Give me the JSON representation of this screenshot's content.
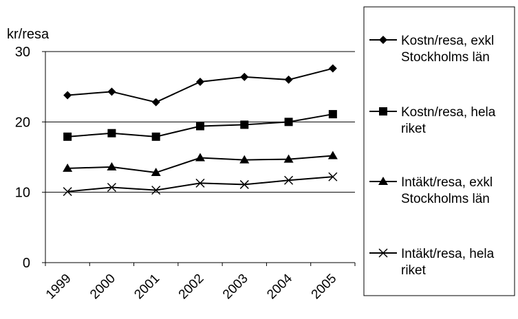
{
  "chart_data": {
    "type": "line",
    "ylabel": "kr/resa",
    "xlabel": "",
    "title": "",
    "ylim": [
      0,
      30
    ],
    "yticks": [
      0,
      10,
      20,
      30
    ],
    "grid": "horizontal",
    "legend_position": "right",
    "categories": [
      "1999",
      "2000",
      "2001",
      "2002",
      "2003",
      "2004",
      "2005"
    ],
    "series": [
      {
        "name": "Kostn/resa, exkl Stockholms län",
        "legend_lines": [
          "Kostn/resa, exkl",
          "Stockholms län"
        ],
        "marker": "diamond",
        "values": [
          23.8,
          24.3,
          22.8,
          25.7,
          26.4,
          26.0,
          27.6
        ]
      },
      {
        "name": "Kostn/resa, hela riket",
        "legend_lines": [
          "Kostn/resa, hela",
          "riket"
        ],
        "marker": "square",
        "values": [
          17.9,
          18.4,
          17.9,
          19.4,
          19.6,
          20.0,
          21.1
        ]
      },
      {
        "name": "Intäkt/resa, exkl Stockholms län",
        "legend_lines": [
          "Intäkt/resa, exkl",
          "Stockholms län"
        ],
        "marker": "triangle",
        "values": [
          13.4,
          13.6,
          12.8,
          14.9,
          14.6,
          14.7,
          15.2
        ]
      },
      {
        "name": "Intäkt/resa, hela riket",
        "legend_lines": [
          "Intäkt/resa, hela",
          "riket"
        ],
        "marker": "x",
        "values": [
          10.1,
          10.7,
          10.3,
          11.3,
          11.1,
          11.7,
          12.2
        ]
      }
    ],
    "colors": {
      "line": "#000000",
      "grid": "#000000",
      "background": "#ffffff"
    }
  }
}
